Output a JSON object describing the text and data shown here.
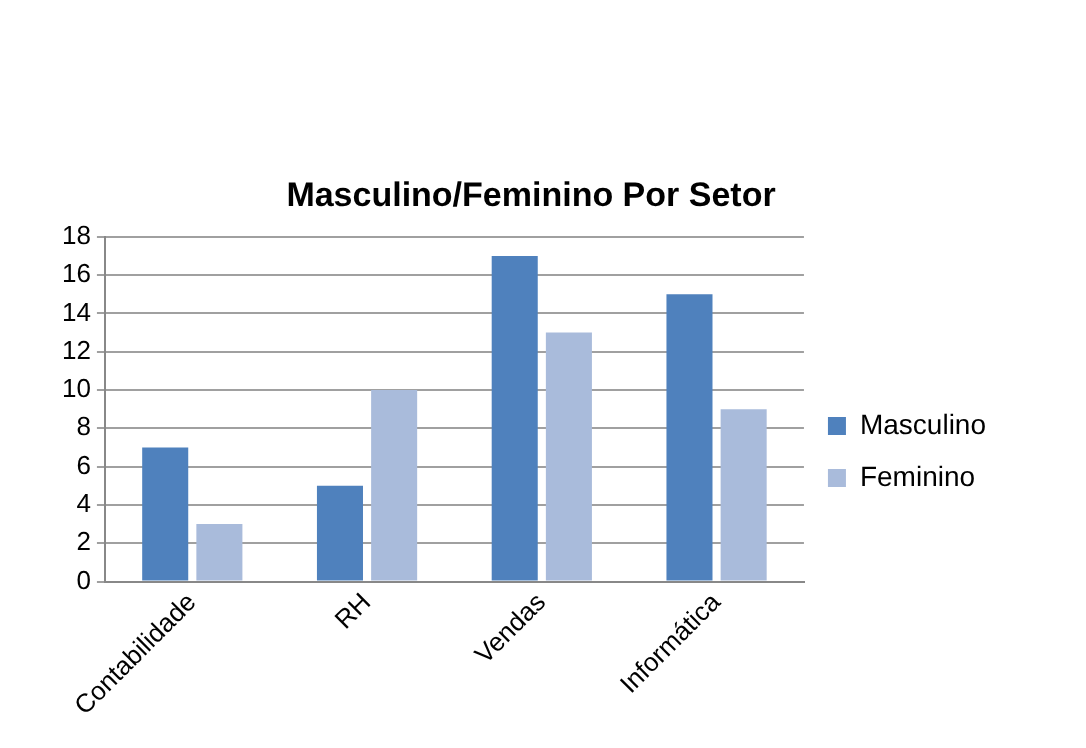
{
  "chart_data": {
    "type": "bar",
    "title": "Masculino/Feminino Por Setor",
    "categories": [
      "Contabilidade",
      "RH",
      "Vendas",
      "Informática"
    ],
    "series": [
      {
        "name": "Masculino",
        "color": "#4f81bd",
        "values": [
          7,
          5,
          17,
          15
        ]
      },
      {
        "name": "Feminino",
        "color": "#a9bbdb",
        "values": [
          3,
          10,
          13,
          9
        ]
      }
    ],
    "ylim": [
      0,
      18
    ],
    "yticks": [
      0,
      2,
      4,
      6,
      8,
      10,
      12,
      14,
      16,
      18
    ],
    "grid": "y",
    "legend": "right"
  }
}
